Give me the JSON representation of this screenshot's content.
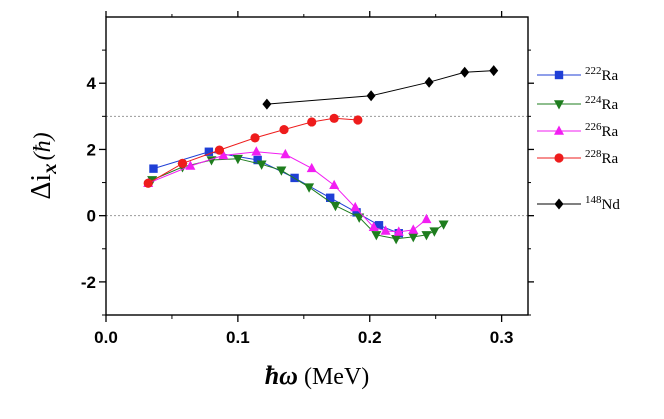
{
  "chart_data": {
    "type": "line",
    "xlabel": {
      "prefix": "ħω",
      "unit": " (MeV)"
    },
    "ylabel": {
      "main": "Δi",
      "sub": "x",
      "unit": "(ħ)"
    },
    "xlim": [
      0.0,
      0.32
    ],
    "ylim": [
      -3.0,
      6.0
    ],
    "x_ticks": [
      "0.0",
      "0.1",
      "0.2",
      "0.3"
    ],
    "x_tick_values": [
      0.0,
      0.1,
      0.2,
      0.3
    ],
    "y_ticks": [
      "-2",
      "0",
      "2",
      "4"
    ],
    "y_tick_values": [
      -2,
      0,
      2,
      4
    ],
    "reference_lines": [
      0,
      3
    ],
    "grid": false,
    "legend_position": "right",
    "series": [
      {
        "name": "222Ra",
        "mass": "222",
        "element": "Ra",
        "color": "#1f3fd6",
        "marker": "square",
        "x": [
          0.036,
          0.078,
          0.115,
          0.143,
          0.17,
          0.19,
          0.207,
          0.222
        ],
        "y": [
          1.42,
          1.93,
          1.68,
          1.14,
          0.54,
          0.1,
          -0.29,
          -0.53
        ]
      },
      {
        "name": "224Ra",
        "mass": "224",
        "element": "Ra",
        "color": "#1e7d1e",
        "marker": "triangle-down",
        "x": [
          0.035,
          0.058,
          0.08,
          0.1,
          0.118,
          0.133,
          0.154,
          0.174,
          0.192,
          0.205,
          0.22,
          0.233,
          0.243,
          0.249,
          0.256
        ],
        "y": [
          1.08,
          1.47,
          1.68,
          1.72,
          1.55,
          1.37,
          0.86,
          0.3,
          -0.05,
          -0.58,
          -0.7,
          -0.64,
          -0.58,
          -0.47,
          -0.26
        ]
      },
      {
        "name": "226Ra",
        "mass": "226",
        "element": "Ra",
        "color": "#f21ef2",
        "marker": "triangle-up",
        "x": [
          0.032,
          0.064,
          0.089,
          0.114,
          0.136,
          0.156,
          0.173,
          0.189,
          0.203,
          0.212,
          0.222,
          0.233,
          0.243
        ],
        "y": [
          0.98,
          1.5,
          1.82,
          1.93,
          1.85,
          1.43,
          0.92,
          0.25,
          -0.35,
          -0.46,
          -0.49,
          -0.43,
          -0.11
        ]
      },
      {
        "name": "228Ra",
        "mass": "228",
        "element": "Ra",
        "color": "#ee1c1c",
        "marker": "circle",
        "x": [
          0.032,
          0.058,
          0.086,
          0.113,
          0.135,
          0.156,
          0.173,
          0.191
        ],
        "y": [
          0.98,
          1.58,
          1.98,
          2.35,
          2.6,
          2.83,
          2.94,
          2.89
        ]
      },
      {
        "name": "148Nd",
        "mass": "148",
        "element": "Nd",
        "color": "#000000",
        "marker": "diamond",
        "x": [
          0.122,
          0.201,
          0.245,
          0.272,
          0.294
        ],
        "y": [
          3.37,
          3.62,
          4.03,
          4.33,
          4.38
        ]
      }
    ]
  }
}
